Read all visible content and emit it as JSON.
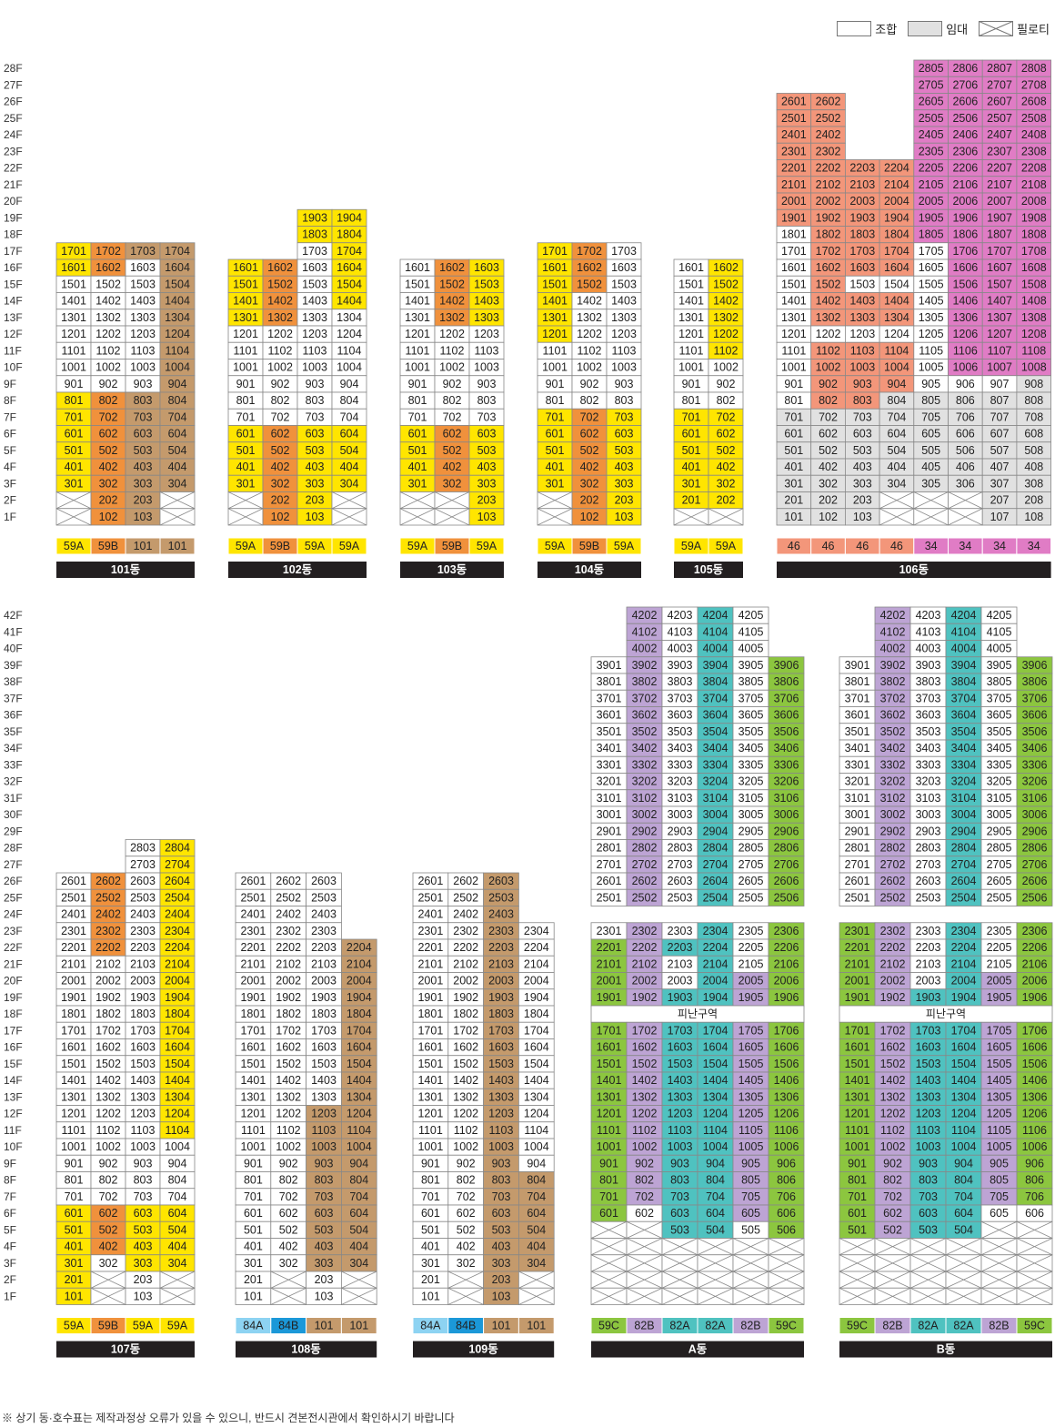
{
  "legend": {
    "union": "조합",
    "rental": "임대",
    "piloti": "필로티"
  },
  "footnote": "※ 상기 동·호수표는 제작과정상 오류가 있을 수 있으니, 반드시 견본전시관에서 확인하시기 바랍니다",
  "colors": {
    "59A": "#FFE500",
    "59B": "#F0913C",
    "101": "#C49A6C",
    "46": "#F3967A",
    "34": "#E07CC5",
    "84A": "#8DD3F2",
    "84B": "#1B98D8",
    "59C": "#8CC63F",
    "82B": "#BDA4D4",
    "82A": "#4FC2C0",
    "union": "#FFFFFF",
    "rental": "#E1E1E1",
    "label_bar": "#231F20"
  },
  "rows": {
    "top": [
      "28F",
      "27F",
      "26F",
      "25F",
      "24F",
      "23F",
      "22F",
      "21F",
      "20F",
      "19F",
      "18F",
      "17F",
      "16F",
      "15F",
      "14F",
      "13F",
      "12F",
      "11F",
      "10F",
      "9F",
      "8F",
      "7F",
      "6F",
      "5F",
      "4F",
      "3F",
      "2F",
      "1F"
    ],
    "bottom": [
      "42F",
      "41F",
      "40F",
      "39F",
      "38F",
      "37F",
      "36F",
      "35F",
      "34F",
      "33F",
      "32F",
      "31F",
      "30F",
      "29F",
      "28F",
      "27F",
      "26F",
      "25F",
      "24F",
      "23F",
      "22F",
      "21F",
      "20F",
      "19F",
      "18F",
      "17F",
      "16F",
      "15F",
      "14F",
      "13F",
      "12F",
      "11F",
      "10F",
      "9F",
      "8F",
      "7F",
      "6F",
      "5F",
      "4F",
      "3F",
      "2F",
      "1F"
    ]
  },
  "buildings": [
    {
      "name": "101동",
      "group": "top",
      "types": [
        "59A",
        "59B",
        "101",
        "101"
      ],
      "grid": [
        "",
        "",
        "",
        "",
        "",
        "",
        "",
        "",
        "",
        "",
        "",
        "1701:59A 1702:59B 1703:101 1704:101",
        "1601:59A 1602:59B 1603 1604:101",
        "1501 1502 1503 1504:101",
        "1401 1402 1403 1404:101",
        "1301 1302 1303 1304:101",
        "1201 1202 1203 1204:101",
        "1101 1102 1103 1104:101",
        "1001 1002 1003 1004:101",
        "901 902 903 904:101",
        "801:59A 802:59B 803:101 804:101",
        "701:59A 702:59B 703:101 704:101",
        "601:59A 602:59B 603:101 604:101",
        "501:59A 502:59B 503:101 504:101",
        "401:59A 402:59B 403:101 404:101",
        "301:59A 302:59B 303:101 304:101",
        "X 202:59B 203:101 X",
        "X 102:59B 103:101 X"
      ]
    },
    {
      "name": "102동",
      "group": "top",
      "types": [
        "59A",
        "59B",
        "59A",
        "59A"
      ],
      "grid": [
        "",
        "",
        "",
        "",
        "",
        "",
        "",
        "",
        "",
        "_ _ 1903:59A 1904:59A",
        "_ _ 1803:59A 1804:59A",
        "_ _ 1703 1704:59A",
        "1601:59A 1602:59B 1603 1604:59A",
        "1501:59A 1502:59B 1503 1504:59A",
        "1401:59A 1402:59B 1403 1404:59A",
        "1301:59A 1302:59B 1303 1304",
        "1201 1202 1203 1204",
        "1101 1102 1103 1104",
        "1001 1002 1003 1004",
        "901 902 903 904",
        "801 802 803 804",
        "701 702 703 704",
        "601:59A 602:59B 603:59A 604:59A",
        "501:59A 502:59B 503:59A 504:59A",
        "401:59A 402:59B 403:59A 404:59A",
        "301:59A 302:59B 303:59A 304:59A",
        "X 202:59B 203:59A X",
        "X 102:59B 103:59A X"
      ]
    },
    {
      "name": "103동",
      "group": "top",
      "types": [
        "59A",
        "59B",
        "59A"
      ],
      "grid": [
        "",
        "",
        "",
        "",
        "",
        "",
        "",
        "",
        "",
        "",
        "",
        "",
        "1601 1602:59B 1603:59A",
        "1501 1502:59B 1503:59A",
        "1401 1402:59B 1403:59A",
        "1301 1302:59B 1303:59A",
        "1201 1202 1203",
        "1101 1102 1103",
        "1001 1002 1003",
        "901 902 903",
        "801 802 803",
        "701 702 703",
        "601:59A 602:59B 603:59A",
        "501:59A 502:59B 503:59A",
        "401:59A 402:59B 403:59A",
        "301:59A 302:59B 303:59A",
        "X X 203:59A",
        "X X 103:59A"
      ]
    },
    {
      "name": "104동",
      "group": "top",
      "types": [
        "59A",
        "59B",
        "59A"
      ],
      "grid": [
        "",
        "",
        "",
        "",
        "",
        "",
        "",
        "",
        "",
        "",
        "",
        "1701:59A 1702:59B 1703",
        "1601:59A 1602:59B 1603",
        "1501:59A 1502:59B 1503",
        "1401:59A 1402 1403",
        "1301:59A 1302 1303",
        "1201:59A 1202 1203",
        "1101 1102 1103",
        "1001 1002 1003",
        "901 902 903",
        "801 802 803",
        "701:59A 702:59B 703:59A",
        "601:59A 602:59B 603:59A",
        "501:59A 502:59B 503:59A",
        "401:59A 402:59B 403:59A",
        "301:59A 302:59B 303:59A",
        "X 202:59B 203:59A",
        "X 102:59B 103:59A"
      ]
    },
    {
      "name": "105동",
      "group": "top",
      "types": [
        "59A",
        "59A"
      ],
      "grid": [
        "",
        "",
        "",
        "",
        "",
        "",
        "",
        "",
        "",
        "",
        "",
        "",
        "1601 1602:59A",
        "1501 1502:59A",
        "1401 1402:59A",
        "1301 1302:59A",
        "1201 1202:59A",
        "1101 1102:59A",
        "1001 1002",
        "901 902",
        "801 802",
        "701:59A 702:59A",
        "601:59A 602:59A",
        "501:59A 502:59A",
        "401:59A 402:59A",
        "301:59A 302:59A",
        "201:59A 202:59A",
        "X X"
      ]
    },
    {
      "name": "106동",
      "group": "top",
      "types": [
        "46",
        "46",
        "46",
        "46",
        "34",
        "34",
        "34",
        "34"
      ],
      "grid": [
        "_ _ _ _ 2805:34 2806:34 2807:34 2808:34",
        "_ _ _ _ 2705:34 2706:34 2707:34 2708:34",
        "2601:46 2602:46 _ _ 2605:34 2606:34 2607:34 2608:34",
        "2501:46 2502:46 _ _ 2505:34 2506:34 2507:34 2508:34",
        "2401:46 2402:46 _ _ 2405:34 2406:34 2407:34 2408:34",
        "2301:46 2302:46 _ _ 2305:34 2306:34 2307:34 2308:34",
        "2201:46 2202:46 2203:46 2204:46 2205:34 2206:34 2207:34 2208:34",
        "2101:46 2102:46 2103:46 2104:46 2105:34 2106:34 2107:34 2108:34",
        "2001:46 2002:46 2003:46 2004:46 2005:34 2006:34 2007:34 2008:34",
        "1901:46 1902:46 1903:46 1904:46 1905:34 1906:34 1907:34 1908:34",
        "1801 1802:46 1803:46 1804:46 1805:34 1806:34 1807:34 1808:34",
        "1701 1702:46 1703:46 1704:46 1705 1706:34 1707:34 1708:34",
        "1601 1602:46 1603:46 1604:46 1605 1606:34 1607:34 1608:34",
        "1501 1502:46 1503 1504 1505 1506:34 1507:34 1508:34",
        "1401 1402:46 1403:46 1404:46 1405 1406:34 1407:34 1408:34",
        "1301 1302:46 1303:46 1304:46 1305 1306:34 1307:34 1308:34",
        "1201 1202 1203 1204 1205 1206:34 1207:34 1208:34",
        "1101 1102:46 1103:46 1104:46 1105 1106:34 1107:34 1108:34",
        "1001 1002:46 1003:46 1004:46 1005 1006:34 1007:34 1008:34",
        "901 902:46 903:46 904:46 905 906 907 908:R",
        "801 802:46 803:46 804:R 805:R 806:R 807:R 808:R",
        "701:R 702:R 703:R 704:R 705:R 706:R 707:R 708:R",
        "601:R 602:R 603:R 604:R 605:R 606:R 607:R 608:R",
        "501:R 502:R 503:R 504:R 505:R 506:R 507:R 508:R",
        "401:R 402:R 403:R 404:R 405:R 406:R 407:R 408:R",
        "301:R 302:R 303:R 304:R 305:R 306:R 307:R 308:R",
        "201:R 202:R 203:R X X X 207:R 208:R",
        "101:R 102:R 103:R X X X 107:R 108:R"
      ]
    },
    {
      "name": "107동",
      "group": "bottom",
      "types": [
        "59A",
        "59B",
        "59A",
        "59A"
      ],
      "grid": [
        "",
        "",
        "",
        "",
        "",
        "",
        "",
        "",
        "",
        "",
        "",
        "",
        "",
        "",
        "_ _ 2803 2804:59A",
        "_ _ 2703 2704:59A",
        "2601 2602:59B 2603 2604:59A",
        "2501 2502:59B 2503 2504:59A",
        "2401 2402:59B 2403 2404:59A",
        "2301 2302:59B 2303 2304:59A",
        "2201 2202:59B 2203 2204:59A",
        "2101 2102 2103 2104:59A",
        "2001 2002 2003 2004:59A",
        "1901 1902 1903 1904:59A",
        "1801 1802 1803 1804:59A",
        "1701 1702 1703 1704:59A",
        "1601 1602 1603 1604:59A",
        "1501 1502 1503 1504:59A",
        "1401 1402 1403 1404:59A",
        "1301 1302 1303 1304:59A",
        "1201 1202 1203 1204:59A",
        "1101 1102 1103 1104:59A",
        "1001 1002 1003 1004",
        "901 902 903 904",
        "801 802 803 804",
        "701 702 703 704",
        "601:59A 602:59B 603:59A 604:59A",
        "501:59A 502:59B 503:59A 504:59A",
        "401:59A 402:59B 403:59A 404:59A",
        "301:59A 302 303:59A 304:59A",
        "201:59A X 203 X",
        "101:59A X 103 X"
      ]
    },
    {
      "name": "108동",
      "group": "bottom",
      "types": [
        "84A",
        "84B",
        "101",
        "101"
      ],
      "grid": [
        "",
        "",
        "",
        "",
        "",
        "",
        "",
        "",
        "",
        "",
        "",
        "",
        "",
        "",
        "",
        "",
        "2601 2602 2603",
        "2501 2502 2503",
        "2401 2402 2403",
        "2301 2302 2303",
        "2201 2202 2203 2204:101",
        "2101 2102 2103 2104:101",
        "2001 2002 2003 2004:101",
        "1901 1902 1903 1904:101",
        "1801 1802 1803 1804:101",
        "1701 1702 1703 1704:101",
        "1601 1602 1603 1604:101",
        "1501 1502 1503 1504:101",
        "1401 1402 1403 1404:101",
        "1301 1302 1303 1304:101",
        "1201 1202 1203:101 1204:101",
        "1101 1102 1103:101 1104:101",
        "1001 1002 1003:101 1004:101",
        "901 902 903:101 904:101",
        "801 802 803:101 804:101",
        "701 702 703:101 704:101",
        "601 602 603:101 604:101",
        "501 502 503:101 504:101",
        "401 402 403:101 404:101",
        "301 302 303:101 304:101",
        "201 X 203 X",
        "101 X 103 X"
      ]
    },
    {
      "name": "109동",
      "group": "bottom",
      "types": [
        "84A",
        "84B",
        "101",
        "101"
      ],
      "grid": [
        "",
        "",
        "",
        "",
        "",
        "",
        "",
        "",
        "",
        "",
        "",
        "",
        "",
        "",
        "",
        "",
        "2601 2602 2603:101",
        "2501 2502 2503:101",
        "2401 2402 2403:101",
        "2301 2302 2303:101 2304",
        "2201 2202 2203:101 2204",
        "2101 2102 2103:101 2104",
        "2001 2002 2003:101 2004",
        "1901 1902 1903:101 1904",
        "1801 1802 1803:101 1804",
        "1701 1702 1703:101 1704",
        "1601 1602 1603:101 1604",
        "1501 1502 1503:101 1504",
        "1401 1402 1403:101 1404",
        "1301 1302 1303:101 1304",
        "1201 1202 1203:101 1204",
        "1101 1102 1103:101 1104",
        "1001 1002 1003:101 1004",
        "901 902 903:101 904",
        "801 802 803:101 804:101",
        "701 702 703:101 704:101",
        "601 602 603:101 604:101",
        "501 502 503:101 504:101",
        "401 402 403:101 404:101",
        "301 302 303:101 304:101",
        "201 X 203:101 X",
        "101 X 103:101 X"
      ]
    },
    {
      "name": "A동",
      "group": "bottom",
      "types": [
        "59C",
        "82B",
        "82A",
        "82A",
        "82B",
        "59C"
      ],
      "refuge": "피난구역",
      "refuge_row": 24,
      "grid": [
        "_ 4202:82B 4203 4204:82A 4205",
        "_ 4102:82B 4103 4104:82A 4105",
        "_ 4002:82B 4003 4004:82A 4005",
        "3901 3902:82B 3903 3904:82A 3905 3906:59C",
        "3801 3802:82B 3803 3804:82A 3805 3806:59C",
        "3701 3702:82B 3703 3704:82A 3705 3706:59C",
        "3601 3602:82B 3603 3604:82A 3605 3606:59C",
        "3501 3502:82B 3503 3504:82A 3505 3506:59C",
        "3401 3402:82B 3403 3404:82A 3405 3406:59C",
        "3301 3302:82B 3303 3304:82A 3305 3306:59C",
        "3201 3202:82B 3203 3204:82A 3205 3206:59C",
        "3101 3102:82B 3103 3104:82A 3105 3106:59C",
        "3001 3002:82B 3003 3004:82A 3005 3006:59C",
        "2901 2902:82B 2903 2904:82A 2905 2906:59C",
        "2801 2802:82B 2803 2804:82A 2805 2806:59C",
        "2701 2702:82B 2703 2704:82A 2705 2706:59C",
        "2601 2602:82B 2603 2604:82A 2605 2606:59C",
        "2501 2502:82B 2503 2504:82A 2505 2506:59C",
        "",
        "2301 2302:82B 2303 2304:82A 2305 2306:59C",
        "2201:59C 2202:82B 2203:82A 2204:82A 2205 2206:59C",
        "2101:59C 2102:82B 2103 2104:82A 2105 2106:59C",
        "2001:59C 2002:82B 2003 2004:82A 2005:82B 2006:59C",
        "1901:59C 1902:82B 1903:82A 1904:82A 1905:82B 1906:59C",
        "1801:59C 1802:82B 1803:82A 1804:82A 1805:82B 1806:59C",
        "1701:59C 1702:82B 1703:82A 1704:82A 1705:82B 1706:59C",
        "1601:59C 1602:82B 1603:82A 1604:82A 1605:82B 1606:59C",
        "1501:59C 1502:82B 1503:82A 1504:82A 1505:82B 1506:59C",
        "1401:59C 1402:82B 1403:82A 1404:82A 1405:82B 1406:59C",
        "1301:59C 1302:82B 1303:82A 1304:82A 1305:82B 1306:59C",
        "1201:59C 1202:82B 1203:82A 1204:82A 1205:82B 1206:59C",
        "1101:59C 1102:82B 1103:82A 1104:82A 1105:82B 1106:59C",
        "1001:59C 1002:82B 1003:82A 1004:82A 1005:82B 1006:59C",
        "901:59C 902:82B 903:82A 904:82A 905:82B 906:59C",
        "801:59C 802:82B 803:82A 804:82A 805:82B 806:59C",
        "701:59C 702:82B 703:82A 704:82A 705:82B 706:59C",
        "601:59C 602 603:82A 604:82A 605:82B 606:59C",
        "X X 503:82A 504:82A 505 506:59C",
        "X X X X X X",
        "X X X X X X",
        "X X X X X X",
        "X X X X X X"
      ]
    },
    {
      "name": "B동",
      "group": "bottom",
      "types": [
        "59C",
        "82B",
        "82A",
        "82A",
        "82B",
        "59C"
      ],
      "refuge": "피난구역",
      "refuge_row": 24,
      "grid": [
        "_ 4202:82B 4203 4204:82A 4205",
        "_ 4102:82B 4103 4104:82A 4105",
        "_ 4002:82B 4003 4004:82A 4005",
        "3901 3902:82B 3903 3904:82A 3905 3906:59C",
        "3801 3802:82B 3803 3804:82A 3805 3806:59C",
        "3701 3702:82B 3703 3704:82A 3705 3706:59C",
        "3601 3602:82B 3603 3604:82A 3605 3606:59C",
        "3501 3502:82B 3503 3504:82A 3505 3506:59C",
        "3401 3402:82B 3403 3404:82A 3405 3406:59C",
        "3301 3302:82B 3303 3304:82A 3305 3306:59C",
        "3201 3202:82B 3203 3204:82A 3205 3206:59C",
        "3101 3102:82B 3103 3104:82A 3105 3106:59C",
        "3001 3002:82B 3003 3004:82A 3005 3006:59C",
        "2901 2902:82B 2903 2904:82A 2905 2906:59C",
        "2801 2802:82B 2803 2804:82A 2805 2806:59C",
        "2701 2702:82B 2703 2704:82A 2705 2706:59C",
        "2601 2602:82B 2603 2604:82A 2605 2606:59C",
        "2501 2502:82B 2503 2504:82A 2505 2506:59C",
        "",
        "2301:59C 2302:82B 2303 2304:82A 2305 2306:59C",
        "2201:59C 2202:82B 2203 2204:82A 2205 2206:59C",
        "2101:59C 2102:82B 2103 2104:82A 2105 2106:59C",
        "2001:59C 2002:82B 2003 2004:82A 2005:82B 2006:59C",
        "1901:59C 1902:82B 1903:82A 1904:82A 1905:82B 1906:59C",
        "1801:59C 1802:82B 1803:82A 1804:82A 1805:82B 1806:59C",
        "1701:59C 1702:82B 1703:82A 1704:82A 1705:82B 1706:59C",
        "1601:59C 1602:82B 1603:82A 1604:82A 1605:82B 1606:59C",
        "1501:59C 1502:82B 1503:82A 1504:82A 1505:82B 1506:59C",
        "1401:59C 1402:82B 1403:82A 1404:82A 1405:82B 1406:59C",
        "1301:59C 1302:82B 1303:82A 1304:82A 1305:82B 1306:59C",
        "1201:59C 1202:82B 1203:82A 1204:82A 1205:82B 1206:59C",
        "1101:59C 1102:82B 1103:82A 1104:82A 1105:82B 1106:59C",
        "1001:59C 1002:82B 1003:82A 1004:82A 1005:82B 1006:59C",
        "901:59C 902:82B 903:82A 904:82A 905:82B 906:59C",
        "801:59C 802:82B 803:82A 804:82A 805:82B 806:59C",
        "701:59C 702:82B 703:82A 704:82A 705:82B 706:59C",
        "601:59C 602:82B 603:82A 604:82A 605 606",
        "501:59C 502:82B 503:82A 504:82A X X",
        "X X X X X X",
        "X X X X X X",
        "X X X X X X",
        "X X X X X X"
      ]
    }
  ]
}
